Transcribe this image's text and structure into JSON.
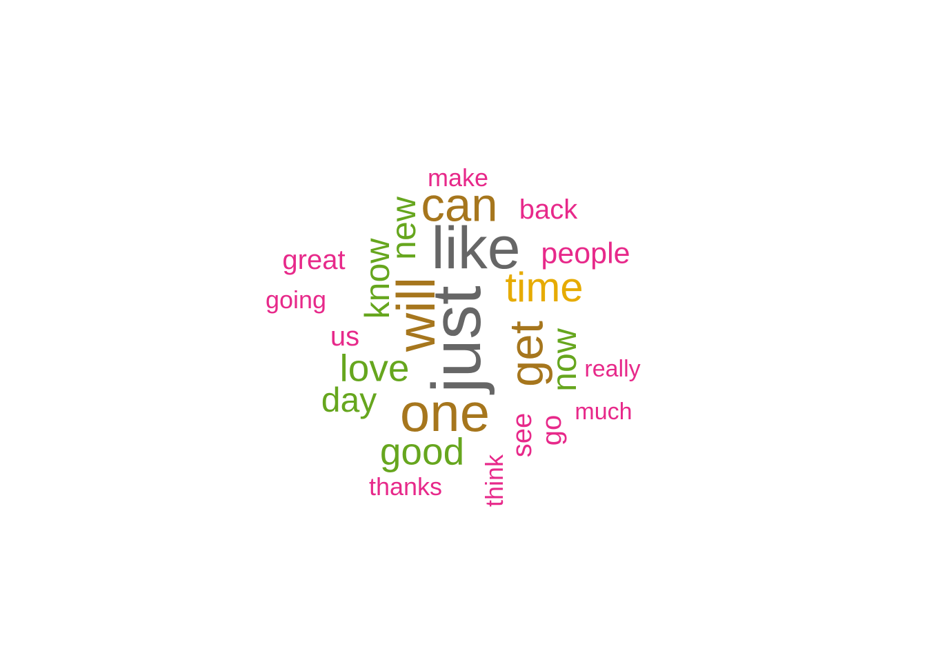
{
  "palette": {
    "gray": "#666666",
    "brown": "#a6761d",
    "gold": "#e6ab02",
    "green": "#66a61e",
    "pink": "#e7298a"
  },
  "words": [
    {
      "text": "just",
      "color": "gray",
      "weight": 1.0,
      "vertical": true
    },
    {
      "text": "like",
      "color": "gray",
      "weight": 0.86,
      "vertical": false
    },
    {
      "text": "one",
      "color": "brown",
      "weight": 0.78,
      "vertical": false
    },
    {
      "text": "will",
      "color": "brown",
      "weight": 0.78,
      "vertical": true
    },
    {
      "text": "can",
      "color": "brown",
      "weight": 0.69,
      "vertical": false
    },
    {
      "text": "get",
      "color": "brown",
      "weight": 0.69,
      "vertical": true
    },
    {
      "text": "time",
      "color": "gold",
      "weight": 0.6,
      "vertical": false
    },
    {
      "text": "love",
      "color": "green",
      "weight": 0.55,
      "vertical": false
    },
    {
      "text": "good",
      "color": "green",
      "weight": 0.55,
      "vertical": false
    },
    {
      "text": "know",
      "color": "green",
      "weight": 0.5,
      "vertical": true
    },
    {
      "text": "now",
      "color": "green",
      "weight": 0.5,
      "vertical": true
    },
    {
      "text": "day",
      "color": "green",
      "weight": 0.5,
      "vertical": false
    },
    {
      "text": "new",
      "color": "green",
      "weight": 0.5,
      "vertical": true
    },
    {
      "text": "people",
      "color": "pink",
      "weight": 0.43,
      "vertical": false
    },
    {
      "text": "back",
      "color": "pink",
      "weight": 0.4,
      "vertical": false
    },
    {
      "text": "great",
      "color": "pink",
      "weight": 0.4,
      "vertical": false
    },
    {
      "text": "see",
      "color": "pink",
      "weight": 0.4,
      "vertical": true
    },
    {
      "text": "us",
      "color": "pink",
      "weight": 0.4,
      "vertical": false
    },
    {
      "text": "go",
      "color": "pink",
      "weight": 0.4,
      "vertical": true
    },
    {
      "text": "going",
      "color": "pink",
      "weight": 0.36,
      "vertical": false
    },
    {
      "text": "make",
      "color": "pink",
      "weight": 0.36,
      "vertical": false
    },
    {
      "text": "thanks",
      "color": "pink",
      "weight": 0.36,
      "vertical": false
    },
    {
      "text": "think",
      "color": "pink",
      "weight": 0.36,
      "vertical": true
    },
    {
      "text": "really",
      "color": "pink",
      "weight": 0.34,
      "vertical": false
    },
    {
      "text": "much",
      "color": "pink",
      "weight": 0.34,
      "vertical": false
    }
  ]
}
